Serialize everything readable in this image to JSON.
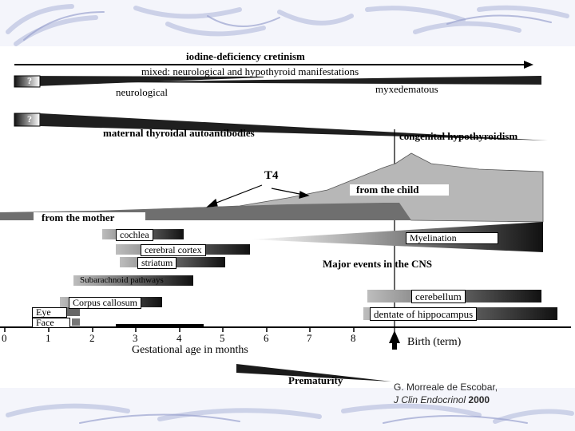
{
  "diagram": {
    "top_arrow_label": "iodine-deficiency cretinism",
    "mixed_label": "mixed: neurological and hypothyroid manifestations",
    "q1": "?",
    "q2": "?",
    "neuro_label": "neurological",
    "myx_label": "myxedematous",
    "auto_label": "maternal thyroidal autoantibodies",
    "congenital_label": "congenital hypothyroidism",
    "t4_label": "T4",
    "child_label": "from the child",
    "mother_label": "from the mother",
    "cns": {
      "cochlea": "cochlea",
      "cortex": "cerebral cortex",
      "striatum": "striatum",
      "myelination": "Myelination",
      "major_events": "Major events in the CNS",
      "subarachnoid": "Subarachnoid pathways",
      "callosum": "Corpus callosum",
      "cerebellum": "cerebellum",
      "eye": "Eye",
      "face": "Face",
      "dentate": "dentate of hippocampus"
    },
    "axis": {
      "ticks": [
        "0",
        "1",
        "2",
        "3",
        "4",
        "5",
        "6",
        "7",
        "8"
      ],
      "xlabel": "Gestational age in months",
      "birth_label": "Birth (term)"
    },
    "prematurity_label": "Prematurity"
  },
  "citation": {
    "author": "G. Morreale de Escobar,",
    "journal": "J Clin Endocrinol",
    "year": "2000"
  },
  "colors": {
    "slide_bg": "#ffffff",
    "deco_stroke": "#c7cde6",
    "band": "#3c3c3c",
    "area_light": "#b4b4b4",
    "area_mid": "#8a8a8a"
  }
}
